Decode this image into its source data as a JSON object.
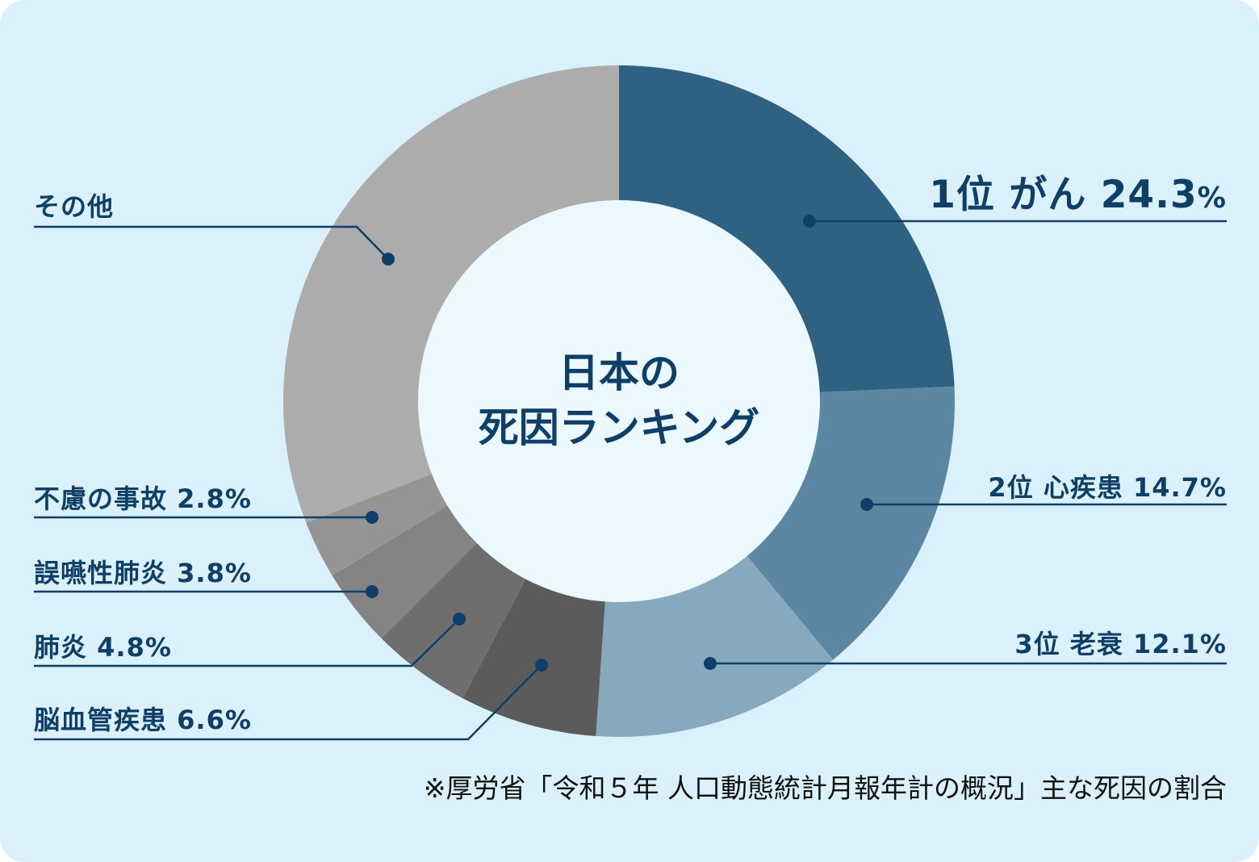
{
  "center_title": {
    "line1": "日本の",
    "line2": "死因ランキング"
  },
  "labels": {
    "cancer": {
      "rank": "1位",
      "name": "がん",
      "value": "24.3",
      "unit": "%"
    },
    "heart": {
      "text": "2位 心疾患 14.7%"
    },
    "senility": {
      "text": "3位 老衰 12.1%"
    },
    "cerebro": {
      "text": "脳血管疾患 6.6%"
    },
    "pneumonia": {
      "text": "肺炎 4.8%"
    },
    "aspiration": {
      "text": "誤嚥性肺炎 3.8%"
    },
    "accident": {
      "text": "不慮の事故 2.8%"
    },
    "other": {
      "text": "その他"
    }
  },
  "source_note": "※厚労省「令和５年 人口動態統計月報年計の概況」主な死因の割合",
  "colors": {
    "background": "#daf0fa",
    "inner_circle": "#ebf8fd",
    "text": "#0f3f66",
    "leader": "#0f3f66"
  },
  "chart_data": {
    "type": "pie",
    "variant": "donut",
    "title": "日本の死因ランキング",
    "categories": [
      "がん",
      "心疾患",
      "老衰",
      "脳血管疾患",
      "肺炎",
      "誤嚥性肺炎",
      "不慮の事故",
      "その他"
    ],
    "values": [
      24.3,
      14.7,
      12.1,
      6.6,
      4.8,
      3.8,
      2.8,
      30.9
    ],
    "ranks": [
      1,
      2,
      3,
      null,
      null,
      null,
      null,
      null
    ],
    "colors": [
      "#2e6182",
      "#5b87a2",
      "#86a9be",
      "#5b5b5b",
      "#6e6e6e",
      "#838383",
      "#959595",
      "#acacac"
    ],
    "start_angle": "12 o'clock, clockwise",
    "annotation": "※厚労省「令和５年 人口動態統計月報年計の概況」主な死因の割合",
    "legend": "none (callout labels with leader lines)"
  }
}
